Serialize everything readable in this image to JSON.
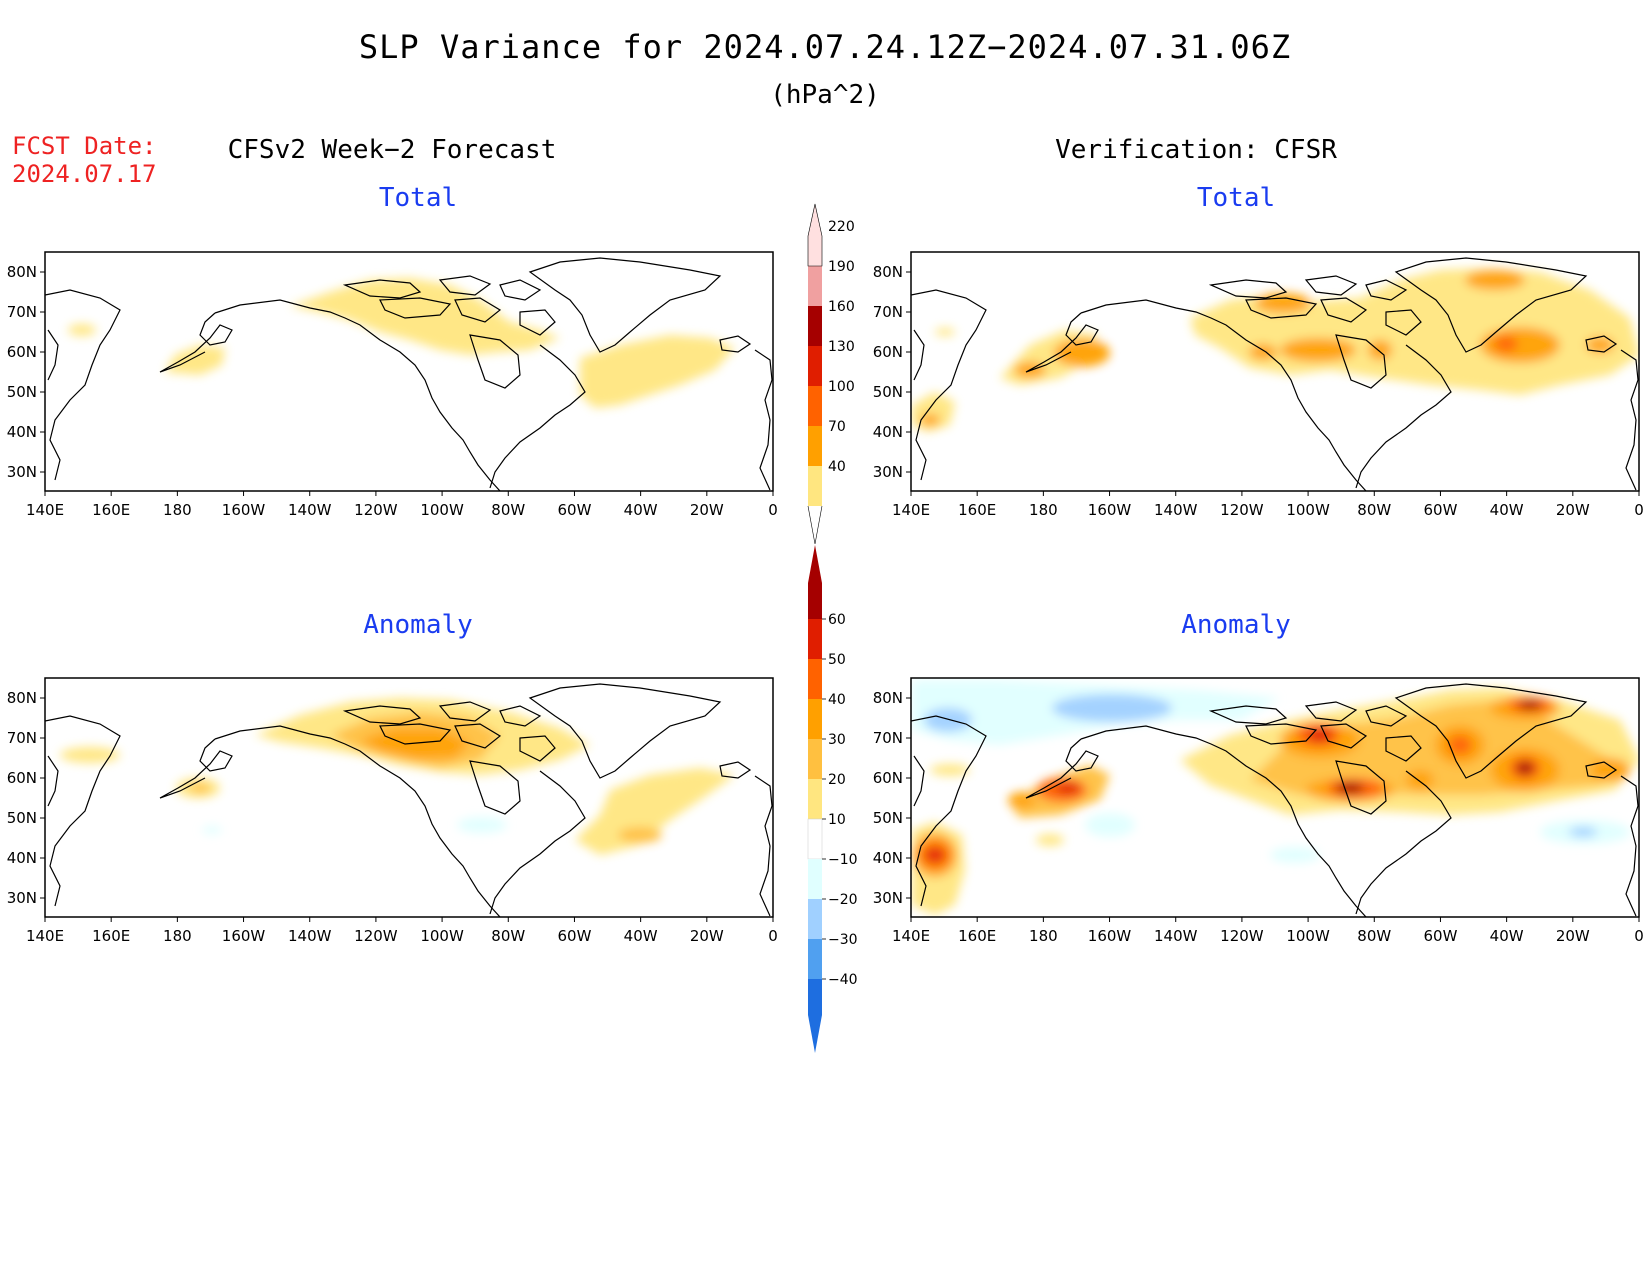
{
  "title": "SLP Variance for 2024.07.24.12Z−2024.07.31.06Z",
  "units": "(hPa^2)",
  "fcst_date": {
    "label": "FCST Date:",
    "value": "2024.07.17"
  },
  "columns": {
    "left": "CFSv2 Week−2 Forecast",
    "right": "Verification: CFSR"
  },
  "rows": {
    "top": "Total",
    "bottom": "Anomaly"
  },
  "lon_ticks": [
    "140E",
    "160E",
    "180",
    "160W",
    "140W",
    "120W",
    "100W",
    "80W",
    "60W",
    "40W",
    "20W",
    "0"
  ],
  "lat_ticks": [
    "80N",
    "70N",
    "60N",
    "50N",
    "40N",
    "30N"
  ],
  "colorbars": {
    "total": {
      "levels": [
        "40",
        "70",
        "100",
        "130",
        "160",
        "190",
        "220"
      ],
      "colors": [
        "#ffe680",
        "#ffa000",
        "#ff6200",
        "#e01e00",
        "#a50000",
        "#f0a0a0",
        "#ffe0e0"
      ]
    },
    "anomaly": {
      "levels": [
        "60",
        "50",
        "40",
        "30",
        "20",
        "10",
        "−10",
        "−20",
        "−30",
        "−40"
      ],
      "colors": [
        "#a50000",
        "#e01e00",
        "#ff6200",
        "#ffa000",
        "#ffc040",
        "#ffe680",
        "#ffffff",
        "#e0ffff",
        "#a0d0ff",
        "#50a0f0",
        "#1e6ee0"
      ]
    }
  },
  "map_colors": {
    "light_yellow": "#ffe680",
    "yellow_orange": "#ffc040",
    "orange": "#ffa000",
    "red_orange": "#ff6200",
    "red": "#e01e00",
    "dark_red": "#a50000",
    "light_cyan": "#e0ffff",
    "light_blue": "#a0d0ff",
    "blue": "#50a0f0"
  }
}
